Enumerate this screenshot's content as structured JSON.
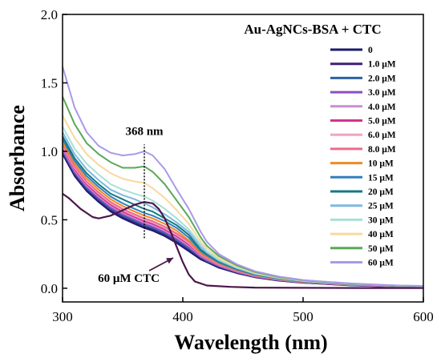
{
  "chart_data": {
    "type": "line",
    "xlabel": "Wavelength (nm)",
    "ylabel": "Absorbance",
    "xlim": [
      300,
      600
    ],
    "ylim": [
      -0.1,
      2.0
    ],
    "xticks": [
      300,
      400,
      500,
      600
    ],
    "yticks": [
      0.0,
      0.5,
      1.0,
      1.5,
      2.0
    ],
    "xtick_labels": [
      "300",
      "400",
      "500",
      "600"
    ],
    "ytick_labels": [
      "0.0",
      "0.5",
      "1.0",
      "1.5",
      "2.0"
    ],
    "grid": false,
    "legend_title": "Au-AgNCs-BSA + CTC",
    "legend_position": "top-right",
    "x": [
      300,
      310,
      320,
      330,
      340,
      350,
      360,
      368,
      375,
      385,
      395,
      405,
      415,
      420,
      430,
      445,
      460,
      480,
      500,
      520,
      540,
      560,
      580,
      600
    ],
    "series": [
      {
        "name": "0",
        "color": "#1a1a6e",
        "values": [
          0.98,
          0.82,
          0.71,
          0.63,
          0.56,
          0.51,
          0.47,
          0.44,
          0.42,
          0.38,
          0.33,
          0.27,
          0.21,
          0.19,
          0.15,
          0.11,
          0.08,
          0.055,
          0.04,
          0.03,
          0.02,
          0.015,
          0.01,
          0.008
        ]
      },
      {
        "name": "1.0 μM",
        "color": "#3b1f7a",
        "values": [
          0.99,
          0.83,
          0.72,
          0.64,
          0.57,
          0.52,
          0.48,
          0.45,
          0.43,
          0.39,
          0.34,
          0.28,
          0.22,
          0.195,
          0.155,
          0.113,
          0.082,
          0.057,
          0.041,
          0.031,
          0.021,
          0.016,
          0.011,
          0.009
        ]
      },
      {
        "name": "2.0 μM",
        "color": "#2e5fa8",
        "values": [
          1.0,
          0.84,
          0.73,
          0.65,
          0.58,
          0.53,
          0.49,
          0.46,
          0.44,
          0.4,
          0.35,
          0.29,
          0.225,
          0.2,
          0.16,
          0.116,
          0.084,
          0.059,
          0.042,
          0.032,
          0.022,
          0.017,
          0.012,
          0.01
        ]
      },
      {
        "name": "3.0 μM",
        "color": "#8a4fc4",
        "values": [
          1.01,
          0.85,
          0.74,
          0.66,
          0.59,
          0.54,
          0.5,
          0.47,
          0.45,
          0.41,
          0.36,
          0.3,
          0.23,
          0.205,
          0.163,
          0.119,
          0.086,
          0.06,
          0.043,
          0.033,
          0.023,
          0.018,
          0.013,
          0.011
        ]
      },
      {
        "name": "4.0 μM",
        "color": "#c98fd0",
        "values": [
          1.02,
          0.86,
          0.75,
          0.67,
          0.6,
          0.55,
          0.51,
          0.48,
          0.46,
          0.42,
          0.37,
          0.31,
          0.235,
          0.21,
          0.166,
          0.121,
          0.088,
          0.061,
          0.044,
          0.034,
          0.024,
          0.018,
          0.013,
          0.011
        ]
      },
      {
        "name": "5.0 μM",
        "color": "#d2338f",
        "values": [
          1.03,
          0.87,
          0.76,
          0.68,
          0.61,
          0.56,
          0.52,
          0.49,
          0.47,
          0.43,
          0.38,
          0.32,
          0.24,
          0.215,
          0.17,
          0.124,
          0.09,
          0.063,
          0.045,
          0.035,
          0.025,
          0.019,
          0.014,
          0.012
        ]
      },
      {
        "name": "6.0 μM",
        "color": "#f2a3c4",
        "values": [
          1.04,
          0.88,
          0.77,
          0.69,
          0.62,
          0.57,
          0.53,
          0.5,
          0.48,
          0.44,
          0.39,
          0.33,
          0.245,
          0.22,
          0.174,
          0.127,
          0.092,
          0.064,
          0.046,
          0.036,
          0.026,
          0.02,
          0.015,
          0.012
        ]
      },
      {
        "name": "8.0 μM",
        "color": "#ee6a8a",
        "values": [
          1.05,
          0.89,
          0.78,
          0.7,
          0.63,
          0.58,
          0.54,
          0.51,
          0.49,
          0.45,
          0.4,
          0.34,
          0.25,
          0.225,
          0.178,
          0.13,
          0.094,
          0.066,
          0.047,
          0.037,
          0.027,
          0.021,
          0.015,
          0.013
        ]
      },
      {
        "name": "10 μM",
        "color": "#f08a24",
        "values": [
          1.07,
          0.91,
          0.8,
          0.72,
          0.65,
          0.6,
          0.56,
          0.53,
          0.51,
          0.47,
          0.42,
          0.35,
          0.26,
          0.23,
          0.182,
          0.133,
          0.096,
          0.067,
          0.048,
          0.038,
          0.028,
          0.021,
          0.016,
          0.013
        ]
      },
      {
        "name": "15 μM",
        "color": "#2f7fc0",
        "values": [
          1.09,
          0.93,
          0.82,
          0.74,
          0.67,
          0.62,
          0.58,
          0.55,
          0.53,
          0.49,
          0.44,
          0.37,
          0.27,
          0.24,
          0.188,
          0.137,
          0.099,
          0.069,
          0.05,
          0.039,
          0.029,
          0.022,
          0.016,
          0.014
        ]
      },
      {
        "name": "20 μM",
        "color": "#137a80",
        "values": [
          1.11,
          0.95,
          0.84,
          0.76,
          0.69,
          0.65,
          0.61,
          0.58,
          0.56,
          0.51,
          0.46,
          0.39,
          0.28,
          0.25,
          0.195,
          0.141,
          0.102,
          0.071,
          0.051,
          0.04,
          0.03,
          0.023,
          0.017,
          0.014
        ]
      },
      {
        "name": "25 μM",
        "color": "#7fb8e0",
        "values": [
          1.14,
          0.98,
          0.87,
          0.79,
          0.72,
          0.68,
          0.65,
          0.62,
          0.59,
          0.54,
          0.48,
          0.41,
          0.3,
          0.26,
          0.202,
          0.146,
          0.105,
          0.073,
          0.052,
          0.041,
          0.031,
          0.023,
          0.017,
          0.015
        ]
      },
      {
        "name": "30 μM",
        "color": "#a8e0d8",
        "values": [
          1.18,
          1.02,
          0.91,
          0.83,
          0.76,
          0.72,
          0.69,
          0.67,
          0.64,
          0.58,
          0.51,
          0.43,
          0.32,
          0.27,
          0.21,
          0.151,
          0.109,
          0.075,
          0.054,
          0.042,
          0.032,
          0.024,
          0.018,
          0.015
        ]
      },
      {
        "name": "40 μM",
        "color": "#f7d9a0",
        "values": [
          1.26,
          1.1,
          0.98,
          0.9,
          0.84,
          0.8,
          0.78,
          0.77,
          0.73,
          0.66,
          0.57,
          0.47,
          0.34,
          0.29,
          0.22,
          0.158,
          0.113,
          0.078,
          0.056,
          0.044,
          0.033,
          0.025,
          0.019,
          0.016
        ]
      },
      {
        "name": "50 μM",
        "color": "#5aa85a",
        "values": [
          1.4,
          1.2,
          1.06,
          0.98,
          0.92,
          0.88,
          0.88,
          0.89,
          0.85,
          0.76,
          0.64,
          0.52,
          0.37,
          0.31,
          0.235,
          0.166,
          0.118,
          0.081,
          0.058,
          0.045,
          0.034,
          0.026,
          0.019,
          0.016
        ]
      },
      {
        "name": "60 μM",
        "color": "#a99ae8",
        "values": [
          1.62,
          1.32,
          1.14,
          1.04,
          0.99,
          0.97,
          0.98,
          1.0,
          0.97,
          0.87,
          0.72,
          0.58,
          0.41,
          0.34,
          0.25,
          0.175,
          0.124,
          0.085,
          0.06,
          0.047,
          0.035,
          0.027,
          0.02,
          0.017
        ]
      }
    ],
    "ctc_curve": {
      "color": "#4a1848",
      "x": [
        300,
        305,
        310,
        315,
        320,
        325,
        330,
        340,
        350,
        360,
        368,
        375,
        380,
        385,
        390,
        395,
        400,
        405,
        410,
        420,
        440,
        460,
        500,
        550,
        600
      ],
      "values": [
        0.69,
        0.66,
        0.62,
        0.58,
        0.55,
        0.52,
        0.51,
        0.53,
        0.57,
        0.61,
        0.63,
        0.62,
        0.58,
        0.51,
        0.41,
        0.3,
        0.19,
        0.1,
        0.05,
        0.02,
        0.01,
        0.005,
        0.003,
        0.002,
        0.001
      ]
    },
    "annotations": {
      "peak_label": "368 nm",
      "peak_x": 368,
      "peak_line_y": [
        0.6,
        1.05
      ],
      "ctc_label": "60 μM CTC",
      "ctc_arrow_to": [
        372,
        0.63
      ]
    }
  }
}
